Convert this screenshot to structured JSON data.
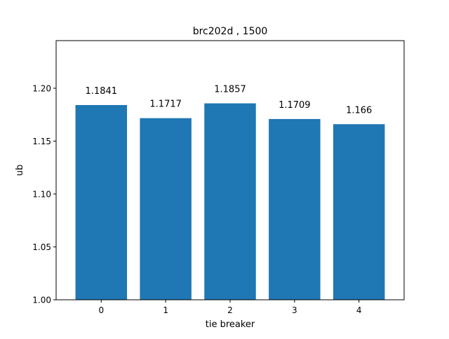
{
  "chart_data": {
    "type": "bar",
    "title": "brc202d , 1500",
    "xlabel": "tie breaker",
    "ylabel": "ub",
    "categories": [
      "0",
      "1",
      "2",
      "3",
      "4"
    ],
    "values": [
      1.1841,
      1.1717,
      1.1857,
      1.1709,
      1.166
    ],
    "value_labels": [
      "1.1841",
      "1.1717",
      "1.1857",
      "1.1709",
      "1.166"
    ],
    "ylim": [
      1.0,
      1.245
    ],
    "yticks": [
      1.0,
      1.05,
      1.1,
      1.15,
      1.2
    ],
    "ytick_labels": [
      "1.00",
      "1.05",
      "1.10",
      "1.15",
      "1.20"
    ],
    "bar_color": "#1f77b4",
    "grid": false,
    "legend": "none"
  }
}
